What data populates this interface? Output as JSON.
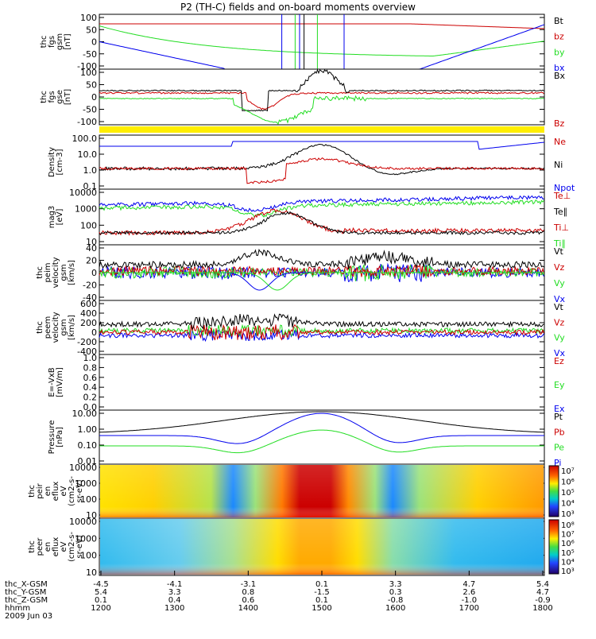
{
  "title": "P2 (TH-C) fields and on-board moments overview",
  "colors": {
    "black": "#000000",
    "red": "#cc0000",
    "green": "#22dd22",
    "blue": "#0000ee",
    "yellow": "#ffee00"
  },
  "chart_data": [
    {
      "type": "line",
      "panel_id": "fgs",
      "ylabel": [
        "thc",
        "fgs",
        "gsm",
        "[nT]"
      ],
      "ylim": [
        -100,
        100
      ],
      "ticks": [
        "100",
        "50",
        "0",
        "-50",
        "-100"
      ],
      "legend": [
        {
          "name": "Bt",
          "color": "#000000"
        },
        {
          "name": "bz",
          "color": "#cc0000"
        },
        {
          "name": "by",
          "color": "#22dd22"
        },
        {
          "name": "bx",
          "color": "#0000ee"
        }
      ]
    },
    {
      "type": "line",
      "panel_id": "fgs_gse",
      "ylabel": [
        "thc",
        "fgs",
        "gse",
        "[nT]"
      ],
      "ylim": [
        -100,
        100
      ],
      "ticks": [
        "100",
        "50",
        "0",
        "-50",
        "-100"
      ],
      "legend": [
        {
          "name": "Bx",
          "color": "#000000"
        },
        {
          "name": "Bz",
          "color": "#cc0000"
        }
      ]
    },
    {
      "type": "line",
      "panel_id": "density",
      "ylabel": [
        "Density",
        "[cm-3]"
      ],
      "scale": "log",
      "ticks": [
        "100.0",
        "10.0",
        "1.0",
        "0.1"
      ],
      "legend": [
        {
          "name": "Ne",
          "color": "#cc0000"
        },
        {
          "name": "Ni",
          "color": "#000000"
        },
        {
          "name": "Npot",
          "color": "#0000ee"
        }
      ]
    },
    {
      "type": "line",
      "panel_id": "temperature",
      "ylabel": [
        "mag3",
        "[eV]"
      ],
      "scale": "log",
      "ticks": [
        "10000",
        "1000",
        "100",
        "10"
      ],
      "legend": [
        {
          "name": "Te⊥",
          "color": "#cc0000"
        },
        {
          "name": "Te∥",
          "color": "#000000"
        },
        {
          "name": "Ti⊥",
          "color": "#cc0000"
        },
        {
          "name": "Ti∥",
          "color": "#22dd22"
        }
      ]
    },
    {
      "type": "line",
      "panel_id": "peim_velocity",
      "ylabel": [
        "thc",
        "peim",
        "velocity",
        "gsm",
        "[km/s]"
      ],
      "ylim": [
        -40,
        40
      ],
      "ticks": [
        "40",
        "20",
        "0",
        "-20",
        "-40"
      ],
      "legend": [
        {
          "name": "Vt",
          "color": "#000000"
        },
        {
          "name": "Vz",
          "color": "#cc0000"
        },
        {
          "name": "Vy",
          "color": "#22dd22"
        },
        {
          "name": "Vx",
          "color": "#0000ee"
        }
      ]
    },
    {
      "type": "line",
      "panel_id": "peem_velocity",
      "ylabel": [
        "thc",
        "peem",
        "velocity",
        "gsm",
        "[km/s]"
      ],
      "ylim": [
        -400,
        600
      ],
      "ticks": [
        "600",
        "400",
        "200",
        "0",
        "-200",
        "-400"
      ],
      "legend": [
        {
          "name": "Vt",
          "color": "#000000"
        },
        {
          "name": "Vz",
          "color": "#cc0000"
        },
        {
          "name": "Vy",
          "color": "#22dd22"
        },
        {
          "name": "Vx",
          "color": "#0000ee"
        }
      ]
    },
    {
      "type": "line",
      "panel_id": "efield",
      "ylabel": [
        "E=-VxB",
        "[mV/m]"
      ],
      "ylim": [
        0,
        1
      ],
      "ticks": [
        "1.0",
        "0.8",
        "0.6",
        "0.4",
        "0.2",
        "0.0"
      ],
      "legend": [
        {
          "name": "Ez",
          "color": "#cc0000"
        },
        {
          "name": "Ey",
          "color": "#22dd22"
        },
        {
          "name": "Ex",
          "color": "#0000ee"
        }
      ]
    },
    {
      "type": "line",
      "panel_id": "pressure",
      "ylabel": [
        "Pressure",
        "[nPa]"
      ],
      "scale": "log",
      "ticks": [
        "10.00",
        "1.00",
        "0.10",
        "0.01"
      ],
      "legend": [
        {
          "name": "Pt",
          "color": "#000000"
        },
        {
          "name": "Pb",
          "color": "#cc0000"
        },
        {
          "name": "Pe",
          "color": "#22dd22"
        },
        {
          "name": "Pi",
          "color": "#0000ee"
        }
      ]
    },
    {
      "type": "heatmap",
      "panel_id": "peir",
      "ylabel": [
        "thc",
        "peir",
        "en",
        "eflux",
        "eV",
        "(cm2-s-",
        "sr-eV)"
      ],
      "ticks": [
        "10000",
        "1000",
        "100",
        "10"
      ],
      "colorbar": [
        "10⁷",
        "10⁶",
        "10⁵",
        "10⁴",
        "10³"
      ]
    },
    {
      "type": "heatmap",
      "panel_id": "peer",
      "ylabel": [
        "thc",
        "peer",
        "en",
        "eflux",
        "eV",
        "(cm2-s-",
        "sr-eV)"
      ],
      "ticks": [
        "10000",
        "1000",
        "100",
        "10"
      ],
      "colorbar": [
        "10⁸",
        "10⁷",
        "10⁶",
        "10⁵",
        "10⁴",
        "10³"
      ]
    }
  ],
  "ephemeris": {
    "labels": [
      "thc_X-GSM",
      "thc_Y-GSM",
      "thc_Z-GSM",
      "hhmm",
      "2009 Jun 03"
    ],
    "rows": [
      [
        "-4.5",
        "-4.1",
        "-3.1",
        "0.1",
        "3.3",
        "4.7",
        "5.4"
      ],
      [
        "5.4",
        "3.3",
        "0.8",
        "-1.5",
        "0.3",
        "2.6",
        "4.7"
      ],
      [
        "0.1",
        "0.4",
        "0.6",
        "0.1",
        "-0.8",
        "-1.0",
        "-0.9"
      ],
      [
        "1200",
        "1300",
        "1400",
        "1500",
        "1600",
        "1700",
        "1800"
      ]
    ]
  }
}
